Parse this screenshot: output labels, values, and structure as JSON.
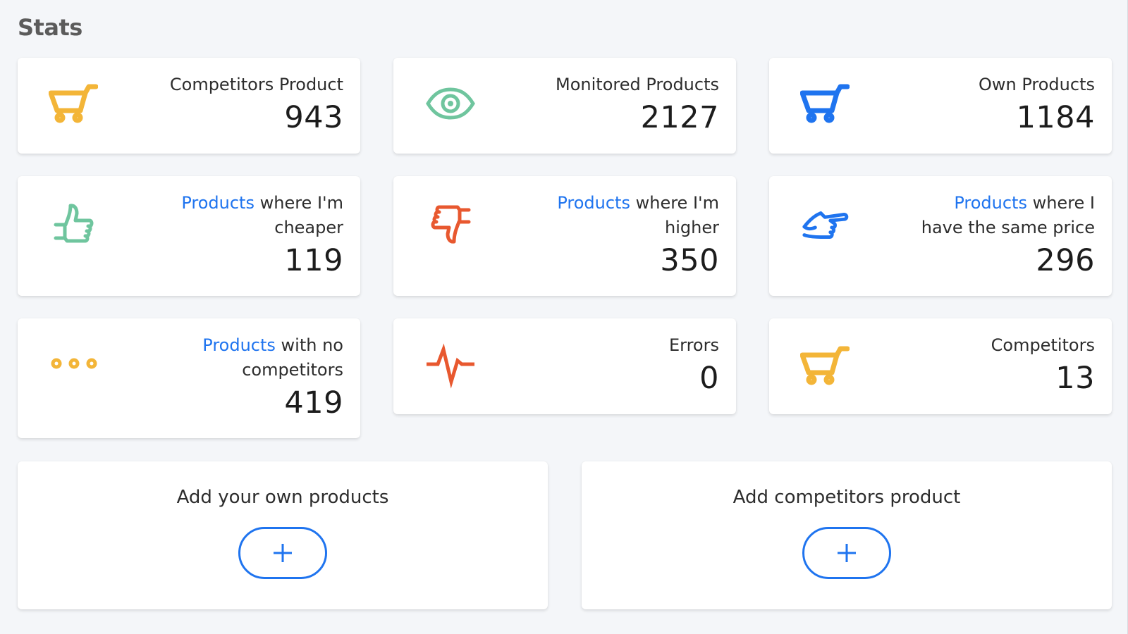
{
  "page": {
    "title": "Stats"
  },
  "colors": {
    "yellow": "#f3b538",
    "green": "#6fc59e",
    "blue": "#1f74ef",
    "orange": "#e8582f",
    "link": "#1f74ef"
  },
  "stats": [
    {
      "icon": "shopping-cart-icon",
      "label": "Competitors Product",
      "value": "943"
    },
    {
      "icon": "eye-icon",
      "label": "Monitored Products",
      "value": "2127"
    },
    {
      "icon": "shopping-cart-icon",
      "label": "Own Products",
      "value": "1184"
    },
    {
      "icon": "thumbs-up-icon",
      "link": "Products",
      "label_line1": " where I'm",
      "label_line2": "cheaper",
      "value": "119"
    },
    {
      "icon": "thumbs-down-icon",
      "link": "Products",
      "label_line1": " where I'm",
      "label_line2": "higher",
      "value": "350"
    },
    {
      "icon": "pointing-hand-icon",
      "link": "Products",
      "label_line1": " where I",
      "label_line2": "have the same price",
      "value": "296"
    },
    {
      "icon": "more-dots-icon",
      "link": "Products",
      "label_line1": " with no",
      "label_line2": "competitors",
      "value": "419"
    },
    {
      "icon": "pulse-icon",
      "label": "Errors",
      "value": "0"
    },
    {
      "icon": "shopping-cart-icon",
      "label": "Competitors",
      "value": "13"
    }
  ],
  "actions": [
    {
      "label": "Add your own products",
      "button": "+"
    },
    {
      "label": "Add competitors product",
      "button": "+"
    }
  ]
}
